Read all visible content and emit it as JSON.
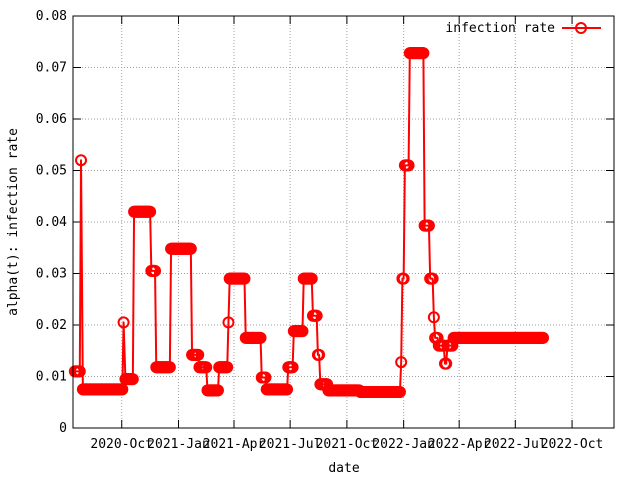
{
  "chart_data": {
    "type": "line",
    "xlabel": "date",
    "ylabel": "alpha(t): infection rate",
    "ylim": [
      0,
      0.08
    ],
    "y_ticks": [
      "0",
      "0.01",
      "0.02",
      "0.03",
      "0.04",
      "0.05",
      "0.06",
      "0.07",
      "0.08"
    ],
    "x_ticks": [
      "2020-Oct",
      "2021-Jan",
      "2021-Apr",
      "2021-Jul",
      "2021-Oct",
      "2022-Jan",
      "2022-Apr",
      "2022-Jul",
      "2022-Oct"
    ],
    "x_tick_dates": [
      "2020-10-01",
      "2021-01-01",
      "2021-04-01",
      "2021-07-01",
      "2021-10-01",
      "2022-01-01",
      "2022-04-01",
      "2022-07-01",
      "2022-10-01"
    ],
    "xlim": [
      "2020-07-14",
      "2022-12-08"
    ],
    "grid": true,
    "legend_position": "top-right",
    "series": [
      {
        "name": "infection rate",
        "color": "#ff0000",
        "marker": "open-circle",
        "segments": [
          {
            "start": "2020-07-17",
            "end": "2020-07-25",
            "value": 0.011
          },
          {
            "start": "2020-07-27",
            "end": "2020-07-27",
            "value": 0.052
          },
          {
            "start": "2020-07-30",
            "end": "2020-10-02",
            "value": 0.0075
          },
          {
            "start": "2020-10-04",
            "end": "2020-10-04",
            "value": 0.0205
          },
          {
            "start": "2020-10-07",
            "end": "2020-10-19",
            "value": 0.0095
          },
          {
            "start": "2020-10-21",
            "end": "2020-11-16",
            "value": 0.042
          },
          {
            "start": "2020-11-18",
            "end": "2020-11-24",
            "value": 0.0305
          },
          {
            "start": "2020-11-26",
            "end": "2020-12-18",
            "value": 0.0118
          },
          {
            "start": "2020-12-20",
            "end": "2021-01-21",
            "value": 0.0348
          },
          {
            "start": "2021-01-23",
            "end": "2021-02-02",
            "value": 0.0142
          },
          {
            "start": "2021-02-04",
            "end": "2021-02-15",
            "value": 0.0118
          },
          {
            "start": "2021-02-17",
            "end": "2021-03-06",
            "value": 0.0073
          },
          {
            "start": "2021-03-08",
            "end": "2021-03-21",
            "value": 0.0118
          },
          {
            "start": "2021-03-23",
            "end": "2021-03-23",
            "value": 0.0205
          },
          {
            "start": "2021-03-25",
            "end": "2021-04-18",
            "value": 0.029
          },
          {
            "start": "2021-04-20",
            "end": "2021-05-14",
            "value": 0.0175
          },
          {
            "start": "2021-05-16",
            "end": "2021-05-22",
            "value": 0.0098
          },
          {
            "start": "2021-05-24",
            "end": "2021-06-26",
            "value": 0.0075
          },
          {
            "start": "2021-06-28",
            "end": "2021-07-05",
            "value": 0.0118
          },
          {
            "start": "2021-07-07",
            "end": "2021-07-21",
            "value": 0.0188
          },
          {
            "start": "2021-07-23",
            "end": "2021-08-05",
            "value": 0.029
          },
          {
            "start": "2021-08-07",
            "end": "2021-08-13",
            "value": 0.0218
          },
          {
            "start": "2021-08-15",
            "end": "2021-08-17",
            "value": 0.0142
          },
          {
            "start": "2021-08-19",
            "end": "2021-08-30",
            "value": 0.0085
          },
          {
            "start": "2021-09-01",
            "end": "2021-10-21",
            "value": 0.0073
          },
          {
            "start": "2021-10-23",
            "end": "2021-12-26",
            "value": 0.007
          },
          {
            "start": "2021-12-28",
            "end": "2021-12-28",
            "value": 0.0128
          },
          {
            "start": "2021-12-30",
            "end": "2022-01-01",
            "value": 0.029
          },
          {
            "start": "2022-01-03",
            "end": "2022-01-09",
            "value": 0.051
          },
          {
            "start": "2022-01-11",
            "end": "2022-02-02",
            "value": 0.0728
          },
          {
            "start": "2022-02-04",
            "end": "2022-02-11",
            "value": 0.0393
          },
          {
            "start": "2022-02-13",
            "end": "2022-02-17",
            "value": 0.029
          },
          {
            "start": "2022-02-19",
            "end": "2022-02-19",
            "value": 0.0215
          },
          {
            "start": "2022-02-21",
            "end": "2022-02-25",
            "value": 0.0175
          },
          {
            "start": "2022-02-27",
            "end": "2022-03-07",
            "value": 0.016
          },
          {
            "start": "2022-03-09",
            "end": "2022-03-11",
            "value": 0.0125
          },
          {
            "start": "2022-03-13",
            "end": "2022-03-21",
            "value": 0.016
          },
          {
            "start": "2022-03-23",
            "end": "2022-08-15",
            "value": 0.0175
          }
        ]
      }
    ]
  }
}
